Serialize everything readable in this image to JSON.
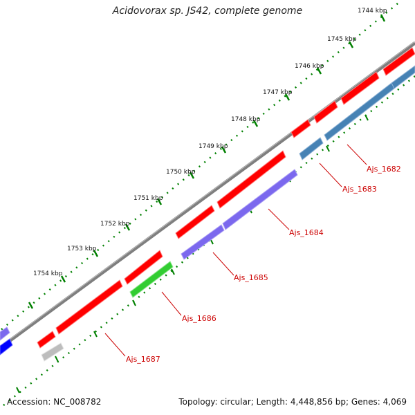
{
  "header": {
    "title": "Acidovorax sp. JS42, complete genome"
  },
  "footer": {
    "accession": "Accession: NC_008782",
    "summary": "Topology: circular; Length: 4,448,856 bp; Genes: 4,069"
  },
  "ruler": {
    "ticks": [
      "1744 kbp",
      "1745 kbp",
      "1746 kbp",
      "1747 kbp",
      "1748 kbp",
      "1749 kbp",
      "1750 kbp",
      "1751 kbp",
      "1752 kbp",
      "1753 kbp",
      "1754 kbp"
    ]
  },
  "colors": {
    "forward_gene": "#ff0000",
    "reverse_blue": "#4682b4",
    "reverse_purple": "#7b68ee",
    "reverse_green": "#32cd32",
    "reverse_gray": "#bdbdbd",
    "partial_blue": "#0000ff",
    "label_color": "#cc0000",
    "backbone": "#7f7f7f",
    "dots_color": "#008000"
  },
  "genes": {
    "labels": [
      "Ajs_1682",
      "Ajs_1683",
      "Ajs_1684",
      "Ajs_1685",
      "Ajs_1686",
      "Ajs_1687"
    ]
  }
}
